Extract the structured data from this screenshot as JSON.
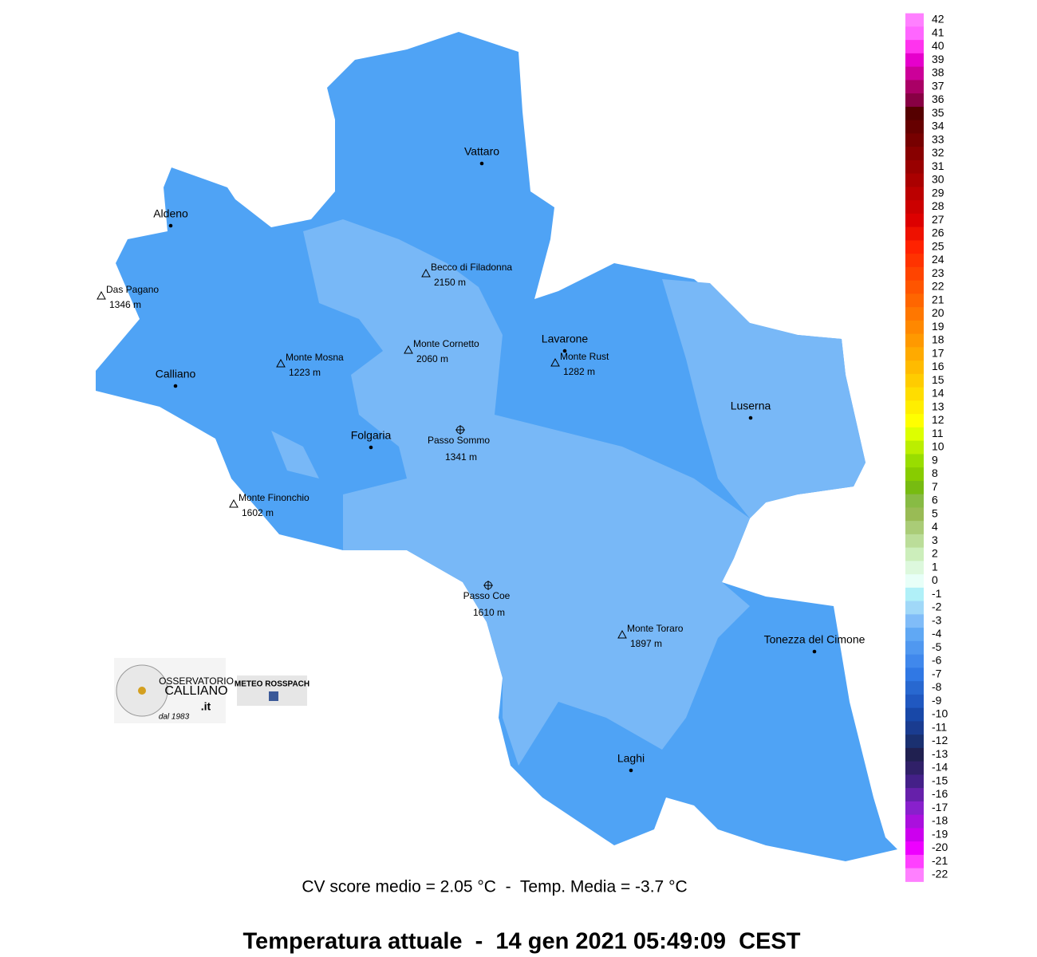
{
  "map": {
    "places": [
      {
        "name": "Vattaro",
        "kind": "town"
      },
      {
        "name": "Aldeno",
        "kind": "town"
      },
      {
        "name": "Das Pagano",
        "elevation": "1346 m",
        "kind": "peak"
      },
      {
        "name": "Becco di Filadonna",
        "elevation": "2150 m",
        "kind": "peak"
      },
      {
        "name": "Monte Cornetto",
        "elevation": "2060 m",
        "kind": "peak"
      },
      {
        "name": "Lavarone",
        "kind": "town"
      },
      {
        "name": "Monte Rust",
        "elevation": "1282 m",
        "kind": "peak"
      },
      {
        "name": "Monte Mosna",
        "elevation": "1223 m",
        "kind": "peak"
      },
      {
        "name": "Calliano",
        "kind": "town"
      },
      {
        "name": "Luserna",
        "kind": "town"
      },
      {
        "name": "Folgaria",
        "kind": "town"
      },
      {
        "name": "Passo Sommo",
        "elevation": "1341 m",
        "kind": "pass"
      },
      {
        "name": "Monte Finonchio",
        "elevation": "1602 m",
        "kind": "peak"
      },
      {
        "name": "Passo Coe",
        "elevation": "1610 m",
        "kind": "pass"
      },
      {
        "name": "Monte Toraro",
        "elevation": "1897 m",
        "kind": "peak"
      },
      {
        "name": "Tonezza del Cimone",
        "kind": "town"
      },
      {
        "name": "Laghi",
        "kind": "town"
      }
    ],
    "scale": [
      {
        "label": 42,
        "color": "#ff80ff"
      },
      {
        "label": 41,
        "color": "#ff66ff"
      },
      {
        "label": 40,
        "color": "#ff33ee"
      },
      {
        "label": 39,
        "color": "#e600cc"
      },
      {
        "label": 38,
        "color": "#cc0099"
      },
      {
        "label": 37,
        "color": "#aa0066"
      },
      {
        "label": 36,
        "color": "#880044"
      },
      {
        "label": 35,
        "color": "#550000"
      },
      {
        "label": 34,
        "color": "#660000"
      },
      {
        "label": 33,
        "color": "#770000"
      },
      {
        "label": 32,
        "color": "#880000"
      },
      {
        "label": 31,
        "color": "#990000"
      },
      {
        "label": 30,
        "color": "#aa0000"
      },
      {
        "label": 29,
        "color": "#bb0000"
      },
      {
        "label": 28,
        "color": "#cc0000"
      },
      {
        "label": 27,
        "color": "#dd0000"
      },
      {
        "label": 26,
        "color": "#ee1100"
      },
      {
        "label": 25,
        "color": "#ff2200"
      },
      {
        "label": 24,
        "color": "#ff3300"
      },
      {
        "label": 23,
        "color": "#ff4400"
      },
      {
        "label": 22,
        "color": "#ff5500"
      },
      {
        "label": 21,
        "color": "#ff6600"
      },
      {
        "label": 20,
        "color": "#ff7700"
      },
      {
        "label": 19,
        "color": "#ff8800"
      },
      {
        "label": 18,
        "color": "#ff9900"
      },
      {
        "label": 17,
        "color": "#ffaa00"
      },
      {
        "label": 16,
        "color": "#ffbb00"
      },
      {
        "label": 15,
        "color": "#ffcc00"
      },
      {
        "label": 14,
        "color": "#ffdd00"
      },
      {
        "label": 13,
        "color": "#ffee00"
      },
      {
        "label": 12,
        "color": "#ffff00"
      },
      {
        "label": 11,
        "color": "#ddff00"
      },
      {
        "label": 10,
        "color": "#bbee00"
      },
      {
        "label": 9,
        "color": "#99dd00"
      },
      {
        "label": 8,
        "color": "#88cc00"
      },
      {
        "label": 7,
        "color": "#77bb11"
      },
      {
        "label": 6,
        "color": "#88bb44"
      },
      {
        "label": 5,
        "color": "#99bb55"
      },
      {
        "label": 4,
        "color": "#aacc77"
      },
      {
        "label": 3,
        "color": "#bbdd99"
      },
      {
        "label": 2,
        "color": "#cceebb"
      },
      {
        "label": 1,
        "color": "#ddf8dd"
      },
      {
        "label": 0,
        "color": "#e8fff8"
      },
      {
        "label": -1,
        "color": "#b0f0f8"
      },
      {
        "label": -2,
        "color": "#a0d8f8"
      },
      {
        "label": -3,
        "color": "#80bcf8"
      },
      {
        "label": -4,
        "color": "#60a8f4"
      },
      {
        "label": -5,
        "color": "#5098f0"
      },
      {
        "label": -6,
        "color": "#4088ec"
      },
      {
        "label": -7,
        "color": "#3078e4"
      },
      {
        "label": -8,
        "color": "#2868d0"
      },
      {
        "label": -9,
        "color": "#2058c0"
      },
      {
        "label": -10,
        "color": "#1848a8"
      },
      {
        "label": -11,
        "color": "#1a3c90"
      },
      {
        "label": -12,
        "color": "#1a3070"
      },
      {
        "label": -13,
        "color": "#202050"
      },
      {
        "label": -14,
        "color": "#302068"
      },
      {
        "label": -15,
        "color": "#442088"
      },
      {
        "label": -16,
        "color": "#6620aa"
      },
      {
        "label": -17,
        "color": "#8820cc"
      },
      {
        "label": -18,
        "color": "#aa10dd"
      },
      {
        "label": -19,
        "color": "#cc00ee"
      },
      {
        "label": -20,
        "color": "#ee00ff"
      },
      {
        "label": -21,
        "color": "#ff40ff"
      },
      {
        "label": -22,
        "color": "#ff80ff"
      }
    ]
  },
  "logos": {
    "observatory": [
      "OSSERVATORIO",
      "CALLIANO",
      ".it",
      "dal 1983"
    ],
    "meteo": "METEO ROSSPACH"
  },
  "footer": {
    "stats": "CV score medio = 2.05 °C  -  Temp. Media = -3.7 °C",
    "title": "Temperatura attuale  -  14 gen 2021 05:49:09  CEST"
  }
}
